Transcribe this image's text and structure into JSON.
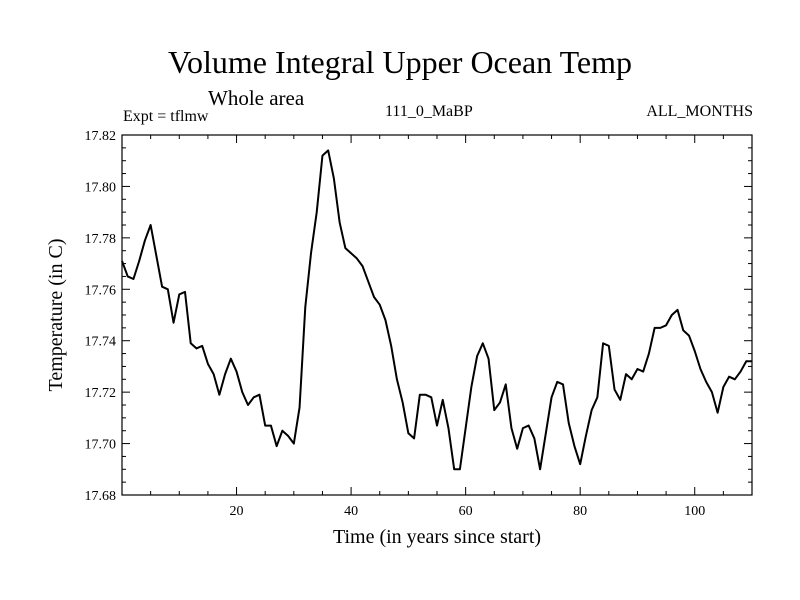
{
  "chart_data": {
    "type": "line",
    "title": "Volume Integral Upper Ocean Temp",
    "subtitle": "Whole area",
    "experiment": "Expt = tflmw",
    "run_id": "111_0_MaBP",
    "months": "ALL_MONTHS",
    "xlabel": "Time (in years since start)",
    "ylabel": "Temperature (in C)",
    "xlim": [
      0,
      110
    ],
    "ylim": [
      17.68,
      17.82
    ],
    "xticks": [
      20,
      40,
      60,
      80,
      100
    ],
    "xtick_labels": [
      "20",
      "40",
      "60",
      "80",
      "100"
    ],
    "yticks": [
      17.68,
      17.7,
      17.72,
      17.74,
      17.76,
      17.78,
      17.8,
      17.82
    ],
    "ytick_labels": [
      "17.68",
      "17.70",
      "17.72",
      "17.74",
      "17.76",
      "17.78",
      "17.80",
      "17.82"
    ],
    "series": [
      {
        "name": "Volume Integral Upper Ocean Temp",
        "x": [
          0,
          1,
          2,
          3,
          4,
          5,
          6,
          7,
          8,
          9,
          10,
          11,
          12,
          13,
          14,
          15,
          16,
          17,
          18,
          19,
          20,
          21,
          22,
          23,
          24,
          25,
          26,
          27,
          28,
          29,
          30,
          31,
          32,
          33,
          34,
          35,
          36,
          37,
          38,
          39,
          40,
          41,
          42,
          43,
          44,
          45,
          46,
          47,
          48,
          49,
          50,
          51,
          52,
          53,
          54,
          55,
          56,
          57,
          58,
          59,
          60,
          61,
          62,
          63,
          64,
          65,
          66,
          67,
          68,
          69,
          70,
          71,
          72,
          73,
          74,
          75,
          76,
          77,
          78,
          79,
          80,
          81,
          82,
          83,
          84,
          85,
          86,
          87,
          88,
          89,
          90,
          91,
          92,
          93,
          94,
          95,
          96,
          97,
          98,
          99,
          100,
          101,
          102,
          103,
          104,
          105,
          106,
          107,
          108,
          109,
          110
        ],
        "values": [
          17.771,
          17.765,
          17.764,
          17.771,
          17.779,
          17.785,
          17.773,
          17.761,
          17.76,
          17.747,
          17.758,
          17.759,
          17.739,
          17.737,
          17.738,
          17.731,
          17.727,
          17.719,
          17.727,
          17.733,
          17.728,
          17.72,
          17.715,
          17.718,
          17.719,
          17.707,
          17.707,
          17.699,
          17.705,
          17.703,
          17.7,
          17.714,
          17.753,
          17.774,
          17.79,
          17.812,
          17.814,
          17.803,
          17.786,
          17.776,
          17.774,
          17.772,
          17.769,
          17.763,
          17.757,
          17.754,
          17.748,
          17.738,
          17.725,
          17.716,
          17.704,
          17.702,
          17.719,
          17.719,
          17.718,
          17.707,
          17.717,
          17.706,
          17.69,
          17.69,
          17.706,
          17.722,
          17.734,
          17.739,
          17.733,
          17.713,
          17.716,
          17.723,
          17.706,
          17.698,
          17.706,
          17.707,
          17.702,
          17.69,
          17.704,
          17.718,
          17.724,
          17.723,
          17.708,
          17.699,
          17.692,
          17.703,
          17.713,
          17.718,
          17.739,
          17.738,
          17.721,
          17.717,
          17.727,
          17.725,
          17.729,
          17.728,
          17.735,
          17.745,
          17.745,
          17.746,
          17.75,
          17.752,
          17.744,
          17.742,
          17.736,
          17.729,
          17.724,
          17.72,
          17.712,
          17.722,
          17.726,
          17.725,
          17.728,
          17.732,
          17.732
        ],
        "color": "#000000"
      }
    ]
  }
}
